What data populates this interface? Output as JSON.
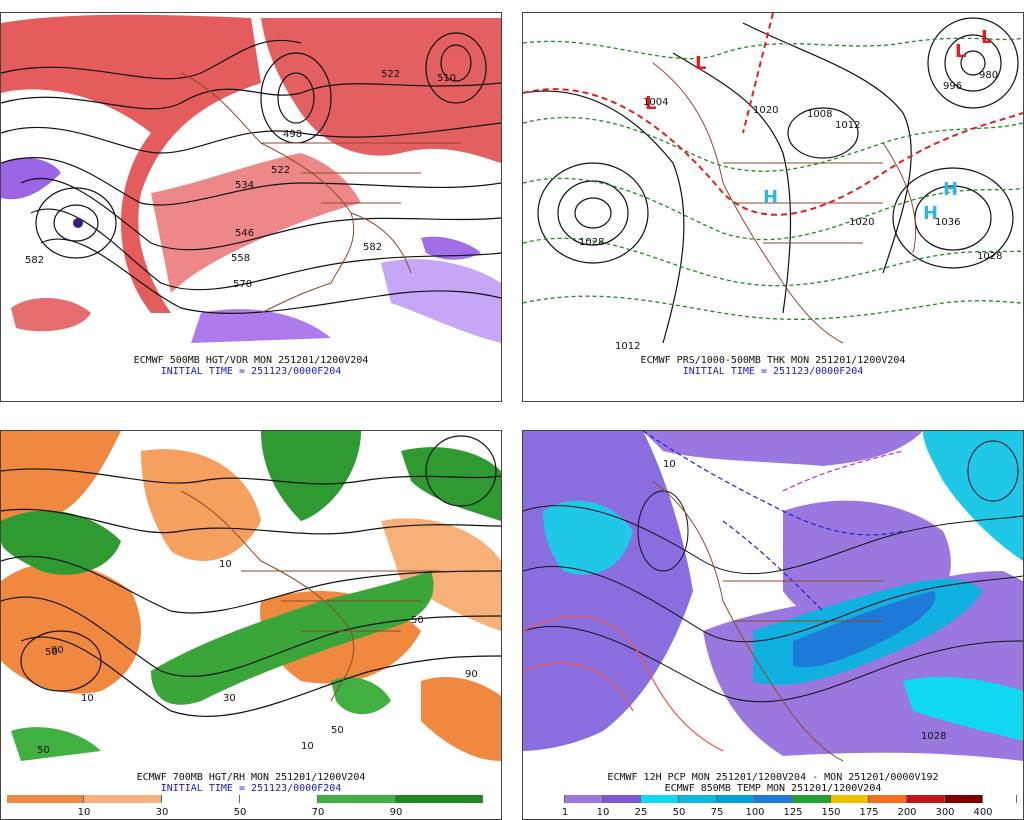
{
  "panels": [
    {
      "caption_line1": "ECMWF 500MB HGT/VOR MON 251201/1200V204",
      "caption_line2": "INITIAL TIME = 251123/0000F204",
      "contour_labels": [
        "522",
        "510",
        "498",
        "522",
        "534",
        "546",
        "558",
        "570",
        "582",
        "582"
      ]
    },
    {
      "caption_line1": "ECMWF PRS/1000-500MB THK MON 251201/1200V204",
      "caption_line2": "INITIAL TIME = 251123/0000F204",
      "contour_labels": [
        "1028",
        "1004",
        "1020",
        "1008",
        "1012",
        "1020",
        "1036",
        "1028",
        "1012",
        "980",
        "996"
      ],
      "pressure_centers": [
        "L",
        "L",
        "L",
        "L",
        "H",
        "H",
        "H"
      ]
    },
    {
      "caption_line1": "ECMWF 700MB HGT/RH MON 251201/1200V204",
      "caption_line2": "INITIAL TIME = 251123/0000F204",
      "contour_labels": [
        "10",
        "50",
        "90",
        "10",
        "30",
        "50",
        "90",
        "50",
        "10",
        "50"
      ],
      "colorbar": {
        "labels": [
          "10",
          "30",
          "50",
          "70",
          "90"
        ],
        "colors": [
          "#f08840",
          "#f6b078",
          "#ffffff",
          "#ffffff",
          "#40b040",
          "#1e8a1e"
        ]
      }
    },
    {
      "caption_line1": "ECMWF 12H PCP MON 251201/1200V204 - MON 251201/0000V192",
      "caption_line2": "ECMWF 850MB TEMP MON 251201/1200V204",
      "contour_labels": [
        "1028",
        "10"
      ],
      "colorbar": {
        "labels": [
          "1",
          "10",
          "25",
          "50",
          "75",
          "100",
          "125",
          "150",
          "175",
          "200",
          "300",
          "400"
        ],
        "colors": [
          "#ffffff",
          "#9a78e0",
          "#7a5ad0",
          "#10d8f0",
          "#10b8e0",
          "#00a0d8",
          "#1e7ad8",
          "#22a030",
          "#f0c000",
          "#f07020",
          "#c01818",
          "#800000",
          "#ffffff"
        ]
      }
    }
  ]
}
